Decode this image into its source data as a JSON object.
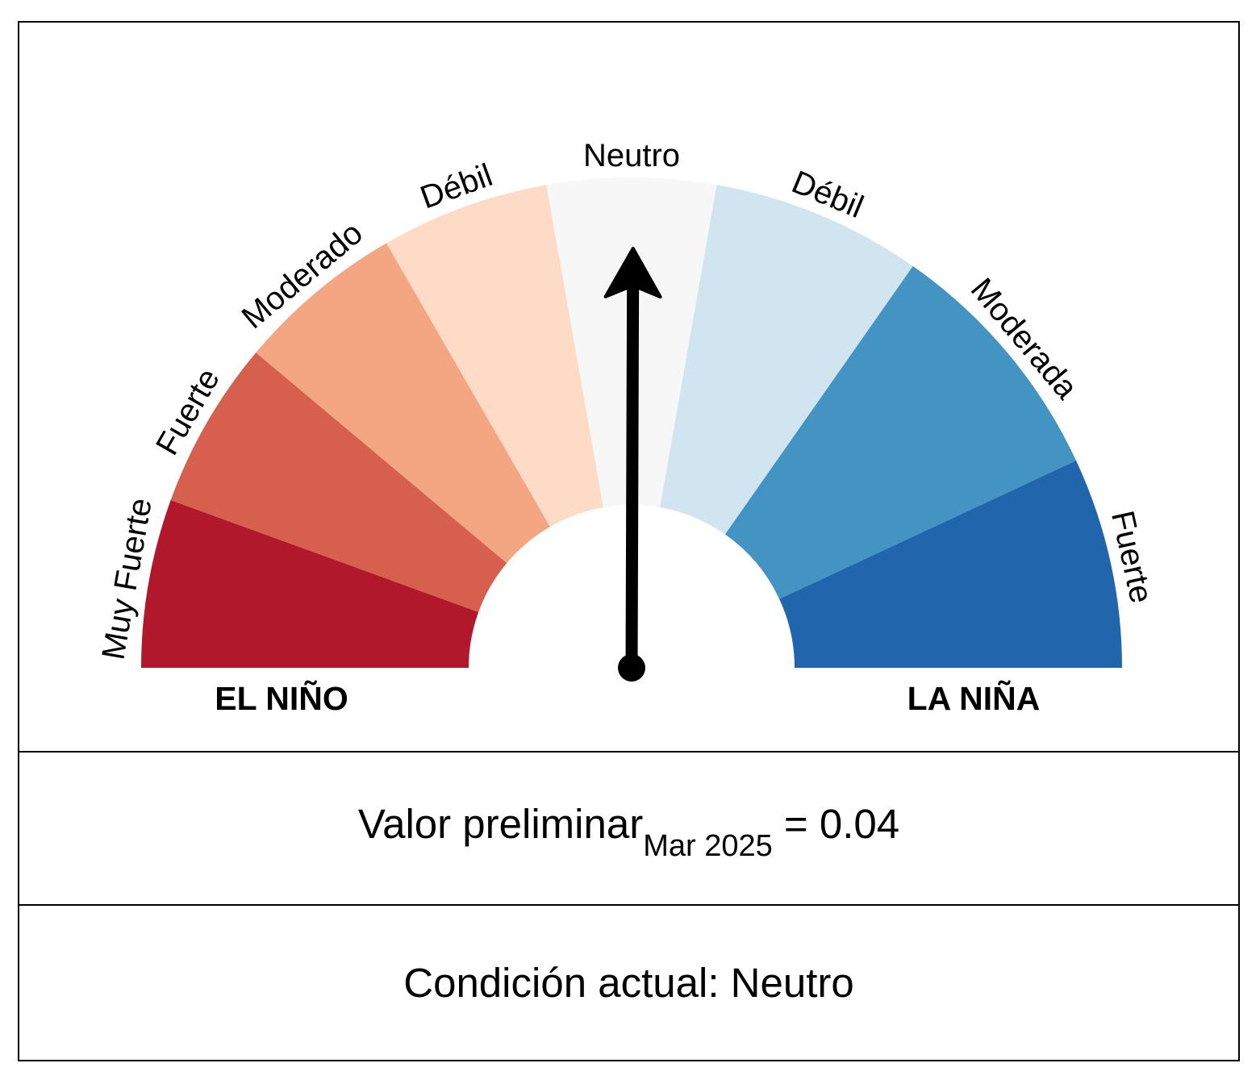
{
  "chart_data": {
    "type": "gauge",
    "sectors": [
      {
        "label": "Muy Fuerte",
        "color": "#b2182b"
      },
      {
        "label": "Fuerte",
        "color": "#d6604d"
      },
      {
        "label": "Moderado",
        "color": "#f4a582"
      },
      {
        "label": "Débil",
        "color": "#fddbc7"
      },
      {
        "label": "Neutro",
        "color": "#f7f7f7"
      },
      {
        "label": "Débil",
        "color": "#d1e5f0"
      },
      {
        "label": "Moderada",
        "color": "#4393c3"
      },
      {
        "label": "Fuerte",
        "color": "#2166ac"
      }
    ],
    "side_labels": {
      "left": "EL NIÑO",
      "right": "LA NIÑA"
    },
    "needle_value": 0.04
  },
  "value": {
    "prefix": "Valor preliminar",
    "subscript": "Mar 2025",
    "suffix": "= 0.04"
  },
  "condition": {
    "text": "Condición actual: Neutro"
  }
}
